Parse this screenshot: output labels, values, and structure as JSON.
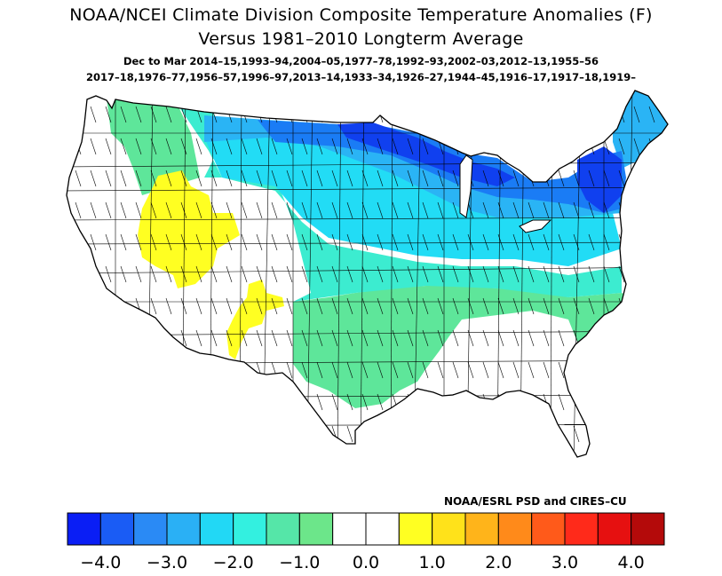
{
  "title": {
    "line1": "NOAA/NCEI Climate Division Composite Temperature Anomalies (F)",
    "line2": "Versus 1981–2010 Longterm Average",
    "line3": "Dec to Mar  2014–15,1993–94,2004–05,1977–78,1992–93,2002–03,2012–13,1955–56",
    "line4": "2017–18,1976–77,1956–57,1996–97,2013–14,1933–34,1926–27,1944–45,1916–17,1917–18,1919–"
  },
  "credit": "NOAA/ESRL PSD and CIRES–CU",
  "legend": {
    "colors": [
      "#0a1ef5",
      "#1a5cf5",
      "#2a8af5",
      "#2ab0f5",
      "#22d8f5",
      "#33f0e0",
      "#55e6a8",
      "#6ce68a",
      "#ffffff",
      "#ffffff",
      "#ffff22",
      "#ffe21a",
      "#ffb41a",
      "#ff8a1a",
      "#ff5a1a",
      "#ff2a1a",
      "#e61010",
      "#b40a0a"
    ],
    "labels": [
      "−4.0",
      "−3.0",
      "−2.0",
      "−1.0",
      "0.0",
      "1.0",
      "2.0",
      "3.0",
      "4.0"
    ]
  },
  "map_colors": {
    "white": "#ffffff",
    "yellow": "#ffff22",
    "green": "#5ee69a",
    "teal": "#3cecd0",
    "cyan": "#22dcf5",
    "sky": "#2ab4f5",
    "blue": "#1a7cf5",
    "deep_blue": "#1040ef"
  }
}
